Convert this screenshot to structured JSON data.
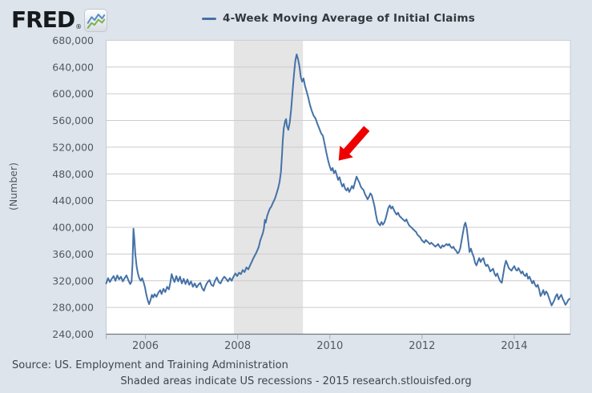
{
  "header": {
    "logo_text": "FRED",
    "logo_registered": "®",
    "legend_label": "4-Week Moving Average of Initial Claims"
  },
  "footer": {
    "source_line": "Source: US. Employment and Training Administration",
    "note_line": "Shaded areas indicate US recessions - 2015 research.stlouisfed.org"
  },
  "colors": {
    "background": "#dde4ec",
    "plot_background": "#ffffff",
    "gridline": "#cccccc",
    "recession_band": "#e5e5e5",
    "series_line": "#4572a7",
    "arrow": "#ee0000",
    "axis_line": "#75797d",
    "plot_edge": "#c3cbd5",
    "tick": "#9fb0c6",
    "axis_text": "#54585d"
  },
  "chart_data": {
    "type": "line",
    "title": "4-Week Moving Average of Initial Claims",
    "ylabel": "(Number)",
    "legend_position": "top-center",
    "grid": "horizontal-only",
    "x_range": [
      2005.148,
      2015.217
    ],
    "y_range": [
      240000,
      680000
    ],
    "y_ticks": {
      "values": [
        240,
        280,
        320,
        360,
        400,
        440,
        480,
        520,
        560,
        600,
        640,
        680
      ],
      "labels": [
        "240,000",
        "280,000",
        "320,000",
        "360,000",
        "400,000",
        "440,000",
        "480,000",
        "520,000",
        "560,000",
        "600,000",
        "640,000",
        "680,000"
      ],
      "units": "thousands"
    },
    "x_ticks": {
      "values": [
        2006,
        2008,
        2010,
        2012,
        2014
      ],
      "labels": [
        "2006",
        "2008",
        "2010",
        "2012",
        "2014"
      ],
      "edge_tick": 2005.148
    },
    "recession_band": {
      "start": 2007.917,
      "end": 2009.417,
      "note": "US recession Dec 2007 - Jun 2009"
    },
    "annotation_arrow": {
      "tail": [
        2010.8,
        548
      ],
      "tip": [
        2010.19,
        500
      ],
      "color": "#ee0000"
    },
    "series": {
      "name": "4-Week Moving Average of Initial Claims",
      "units": "claims, thousands (x = decimal year)",
      "points": [
        [
          2005.15,
          316
        ],
        [
          2005.19,
          324
        ],
        [
          2005.23,
          318
        ],
        [
          2005.27,
          323
        ],
        [
          2005.31,
          327
        ],
        [
          2005.35,
          320
        ],
        [
          2005.39,
          328
        ],
        [
          2005.43,
          322
        ],
        [
          2005.47,
          326
        ],
        [
          2005.51,
          319
        ],
        [
          2005.55,
          324
        ],
        [
          2005.59,
          328
        ],
        [
          2005.63,
          321
        ],
        [
          2005.67,
          315
        ],
        [
          2005.7,
          319
        ],
        [
          2005.72,
          345
        ],
        [
          2005.74,
          398
        ],
        [
          2005.76,
          383
        ],
        [
          2005.78,
          360
        ],
        [
          2005.81,
          341
        ],
        [
          2005.84,
          330
        ],
        [
          2005.87,
          323
        ],
        [
          2005.9,
          320
        ],
        [
          2005.93,
          324
        ],
        [
          2005.96,
          318
        ],
        [
          2005.99,
          310
        ],
        [
          2006.02,
          299
        ],
        [
          2006.05,
          291
        ],
        [
          2006.08,
          285
        ],
        [
          2006.11,
          291
        ],
        [
          2006.14,
          299
        ],
        [
          2006.17,
          295
        ],
        [
          2006.2,
          300
        ],
        [
          2006.24,
          296
        ],
        [
          2006.28,
          302
        ],
        [
          2006.32,
          306
        ],
        [
          2006.35,
          300
        ],
        [
          2006.39,
          308
        ],
        [
          2006.43,
          303
        ],
        [
          2006.47,
          311
        ],
        [
          2006.51,
          307
        ],
        [
          2006.54,
          317
        ],
        [
          2006.57,
          330
        ],
        [
          2006.6,
          323
        ],
        [
          2006.63,
          318
        ],
        [
          2006.67,
          327
        ],
        [
          2006.71,
          319
        ],
        [
          2006.75,
          326
        ],
        [
          2006.79,
          316
        ],
        [
          2006.83,
          323
        ],
        [
          2006.87,
          315
        ],
        [
          2006.91,
          322
        ],
        [
          2006.95,
          314
        ],
        [
          2006.99,
          319
        ],
        [
          2007.03,
          311
        ],
        [
          2007.07,
          316
        ],
        [
          2007.11,
          310
        ],
        [
          2007.15,
          314
        ],
        [
          2007.19,
          317
        ],
        [
          2007.23,
          309
        ],
        [
          2007.27,
          305
        ],
        [
          2007.31,
          313
        ],
        [
          2007.35,
          318
        ],
        [
          2007.39,
          321
        ],
        [
          2007.43,
          314
        ],
        [
          2007.47,
          312
        ],
        [
          2007.51,
          320
        ],
        [
          2007.55,
          325
        ],
        [
          2007.59,
          318
        ],
        [
          2007.63,
          316
        ],
        [
          2007.67,
          322
        ],
        [
          2007.71,
          326
        ],
        [
          2007.75,
          323
        ],
        [
          2007.79,
          319
        ],
        [
          2007.83,
          324
        ],
        [
          2007.87,
          320
        ],
        [
          2007.91,
          326
        ],
        [
          2007.95,
          331
        ],
        [
          2007.99,
          327
        ],
        [
          2008.03,
          332
        ],
        [
          2008.07,
          330
        ],
        [
          2008.11,
          336
        ],
        [
          2008.15,
          333
        ],
        [
          2008.19,
          340
        ],
        [
          2008.23,
          337
        ],
        [
          2008.27,
          343
        ],
        [
          2008.31,
          349
        ],
        [
          2008.35,
          355
        ],
        [
          2008.39,
          360
        ],
        [
          2008.43,
          366
        ],
        [
          2008.46,
          371
        ],
        [
          2008.49,
          380
        ],
        [
          2008.52,
          386
        ],
        [
          2008.55,
          392
        ],
        [
          2008.57,
          398
        ],
        [
          2008.59,
          411
        ],
        [
          2008.61,
          407
        ],
        [
          2008.64,
          417
        ],
        [
          2008.67,
          423
        ],
        [
          2008.7,
          428
        ],
        [
          2008.73,
          431
        ],
        [
          2008.76,
          436
        ],
        [
          2008.79,
          440
        ],
        [
          2008.82,
          445
        ],
        [
          2008.85,
          452
        ],
        [
          2008.88,
          459
        ],
        [
          2008.91,
          468
        ],
        [
          2008.94,
          483
        ],
        [
          2008.96,
          506
        ],
        [
          2008.98,
          530
        ],
        [
          2009.0,
          548
        ],
        [
          2009.03,
          559
        ],
        [
          2009.05,
          562
        ],
        [
          2009.07,
          552
        ],
        [
          2009.1,
          546
        ],
        [
          2009.13,
          557
        ],
        [
          2009.16,
          576
        ],
        [
          2009.19,
          602
        ],
        [
          2009.22,
          628
        ],
        [
          2009.25,
          649
        ],
        [
          2009.28,
          659
        ],
        [
          2009.31,
          652
        ],
        [
          2009.34,
          641
        ],
        [
          2009.37,
          625
        ],
        [
          2009.4,
          618
        ],
        [
          2009.43,
          623
        ],
        [
          2009.46,
          612
        ],
        [
          2009.49,
          605
        ],
        [
          2009.53,
          595
        ],
        [
          2009.57,
          583
        ],
        [
          2009.61,
          574
        ],
        [
          2009.65,
          567
        ],
        [
          2009.69,
          563
        ],
        [
          2009.73,
          555
        ],
        [
          2009.77,
          548
        ],
        [
          2009.81,
          541
        ],
        [
          2009.85,
          537
        ],
        [
          2009.89,
          524
        ],
        [
          2009.93,
          510
        ],
        [
          2009.97,
          498
        ],
        [
          2010.0,
          491
        ],
        [
          2010.03,
          485
        ],
        [
          2010.06,
          489
        ],
        [
          2010.09,
          481
        ],
        [
          2010.12,
          485
        ],
        [
          2010.15,
          478
        ],
        [
          2010.18,
          471
        ],
        [
          2010.21,
          475
        ],
        [
          2010.24,
          467
        ],
        [
          2010.27,
          461
        ],
        [
          2010.3,
          465
        ],
        [
          2010.33,
          458
        ],
        [
          2010.36,
          455
        ],
        [
          2010.39,
          459
        ],
        [
          2010.42,
          453
        ],
        [
          2010.45,
          457
        ],
        [
          2010.48,
          462
        ],
        [
          2010.51,
          458
        ],
        [
          2010.54,
          466
        ],
        [
          2010.58,
          476
        ],
        [
          2010.61,
          471
        ],
        [
          2010.64,
          467
        ],
        [
          2010.67,
          461
        ],
        [
          2010.7,
          458
        ],
        [
          2010.73,
          456
        ],
        [
          2010.76,
          450
        ],
        [
          2010.79,
          446
        ],
        [
          2010.82,
          442
        ],
        [
          2010.85,
          446
        ],
        [
          2010.88,
          451
        ],
        [
          2010.91,
          448
        ],
        [
          2010.94,
          440
        ],
        [
          2010.97,
          431
        ],
        [
          2011.0,
          419
        ],
        [
          2011.03,
          409
        ],
        [
          2011.06,
          405
        ],
        [
          2011.09,
          403
        ],
        [
          2011.12,
          408
        ],
        [
          2011.15,
          404
        ],
        [
          2011.18,
          407
        ],
        [
          2011.21,
          413
        ],
        [
          2011.24,
          421
        ],
        [
          2011.27,
          429
        ],
        [
          2011.3,
          433
        ],
        [
          2011.33,
          428
        ],
        [
          2011.36,
          431
        ],
        [
          2011.39,
          426
        ],
        [
          2011.42,
          422
        ],
        [
          2011.45,
          419
        ],
        [
          2011.48,
          422
        ],
        [
          2011.51,
          417
        ],
        [
          2011.54,
          415
        ],
        [
          2011.57,
          413
        ],
        [
          2011.6,
          411
        ],
        [
          2011.63,
          409
        ],
        [
          2011.66,
          412
        ],
        [
          2011.69,
          407
        ],
        [
          2011.72,
          403
        ],
        [
          2011.75,
          401
        ],
        [
          2011.78,
          399
        ],
        [
          2011.81,
          397
        ],
        [
          2011.84,
          395
        ],
        [
          2011.87,
          393
        ],
        [
          2011.9,
          389
        ],
        [
          2011.93,
          387
        ],
        [
          2011.96,
          385
        ],
        [
          2011.99,
          381
        ],
        [
          2012.02,
          379
        ],
        [
          2012.05,
          377
        ],
        [
          2012.08,
          381
        ],
        [
          2012.11,
          379
        ],
        [
          2012.14,
          377
        ],
        [
          2012.17,
          375
        ],
        [
          2012.2,
          377
        ],
        [
          2012.23,
          375
        ],
        [
          2012.26,
          373
        ],
        [
          2012.29,
          371
        ],
        [
          2012.32,
          373
        ],
        [
          2012.35,
          375
        ],
        [
          2012.38,
          371
        ],
        [
          2012.41,
          369
        ],
        [
          2012.44,
          373
        ],
        [
          2012.47,
          371
        ],
        [
          2012.5,
          373
        ],
        [
          2012.53,
          375
        ],
        [
          2012.56,
          373
        ],
        [
          2012.59,
          375
        ],
        [
          2012.62,
          371
        ],
        [
          2012.65,
          369
        ],
        [
          2012.68,
          371
        ],
        [
          2012.71,
          367
        ],
        [
          2012.74,
          365
        ],
        [
          2012.77,
          361
        ],
        [
          2012.8,
          363
        ],
        [
          2012.83,
          369
        ],
        [
          2012.86,
          381
        ],
        [
          2012.89,
          393
        ],
        [
          2012.92,
          404
        ],
        [
          2012.94,
          407
        ],
        [
          2012.97,
          398
        ],
        [
          2013.0,
          381
        ],
        [
          2013.03,
          363
        ],
        [
          2013.06,
          368
        ],
        [
          2013.09,
          361
        ],
        [
          2013.12,
          356
        ],
        [
          2013.15,
          347
        ],
        [
          2013.18,
          343
        ],
        [
          2013.21,
          349
        ],
        [
          2013.24,
          354
        ],
        [
          2013.27,
          348
        ],
        [
          2013.3,
          352
        ],
        [
          2013.33,
          354
        ],
        [
          2013.36,
          346
        ],
        [
          2013.39,
          342
        ],
        [
          2013.42,
          344
        ],
        [
          2013.45,
          340
        ],
        [
          2013.48,
          334
        ],
        [
          2013.51,
          336
        ],
        [
          2013.54,
          338
        ],
        [
          2013.57,
          331
        ],
        [
          2013.6,
          327
        ],
        [
          2013.63,
          331
        ],
        [
          2013.66,
          325
        ],
        [
          2013.69,
          320
        ],
        [
          2013.73,
          317
        ],
        [
          2013.76,
          329
        ],
        [
          2013.79,
          342
        ],
        [
          2013.82,
          350
        ],
        [
          2013.85,
          345
        ],
        [
          2013.88,
          339
        ],
        [
          2013.91,
          337
        ],
        [
          2013.94,
          335
        ],
        [
          2013.97,
          339
        ],
        [
          2014.0,
          342
        ],
        [
          2014.03,
          337
        ],
        [
          2014.06,
          335
        ],
        [
          2014.09,
          339
        ],
        [
          2014.12,
          335
        ],
        [
          2014.15,
          331
        ],
        [
          2014.18,
          334
        ],
        [
          2014.21,
          329
        ],
        [
          2014.24,
          327
        ],
        [
          2014.27,
          331
        ],
        [
          2014.3,
          323
        ],
        [
          2014.33,
          326
        ],
        [
          2014.36,
          321
        ],
        [
          2014.39,
          316
        ],
        [
          2014.42,
          320
        ],
        [
          2014.45,
          314
        ],
        [
          2014.48,
          311
        ],
        [
          2014.51,
          314
        ],
        [
          2014.54,
          307
        ],
        [
          2014.57,
          297
        ],
        [
          2014.6,
          301
        ],
        [
          2014.63,
          306
        ],
        [
          2014.66,
          299
        ],
        [
          2014.69,
          304
        ],
        [
          2014.72,
          301
        ],
        [
          2014.75,
          295
        ],
        [
          2014.78,
          289
        ],
        [
          2014.81,
          283
        ],
        [
          2014.84,
          287
        ],
        [
          2014.87,
          291
        ],
        [
          2014.9,
          297
        ],
        [
          2014.93,
          300
        ],
        [
          2014.96,
          292
        ],
        [
          2014.99,
          296
        ],
        [
          2015.02,
          299
        ],
        [
          2015.05,
          293
        ],
        [
          2015.08,
          289
        ],
        [
          2015.11,
          284
        ],
        [
          2015.14,
          287
        ],
        [
          2015.17,
          291
        ],
        [
          2015.2,
          293
        ]
      ]
    }
  }
}
